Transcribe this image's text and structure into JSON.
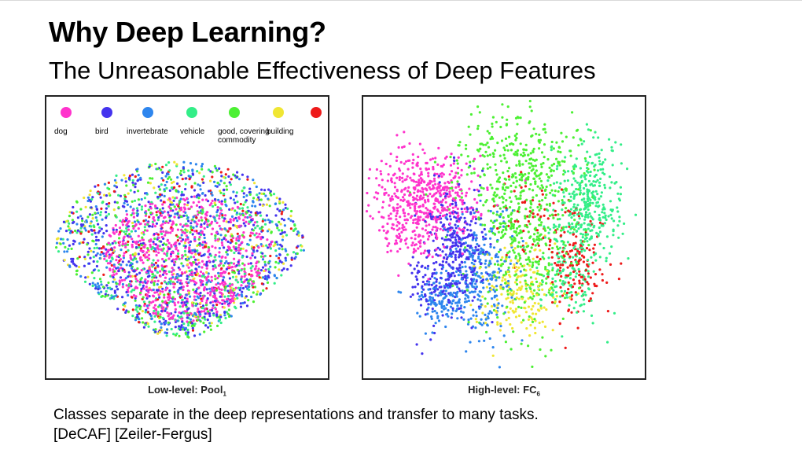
{
  "slide": {
    "title": "Why Deep Learning?",
    "subtitle": "The Unreasonable Effectiveness of Deep Features",
    "footer_line1": "Classes separate in the deep representations and transfer to many tasks.",
    "footer_line2": "[DeCAF] [Zeiler-Fergus]"
  },
  "legend": [
    {
      "label": "dog",
      "color": "#ff33cc"
    },
    {
      "label": "bird",
      "color": "#4433ee"
    },
    {
      "label": "invertebrate",
      "color": "#2e86ee"
    },
    {
      "label": "vehicle",
      "color": "#33ee88"
    },
    {
      "label": "good,  covering commodity",
      "color": "#4cf033"
    },
    {
      "label": "building",
      "color": "#f0e633"
    },
    {
      "label": "",
      "color": "#ee1a1a"
    }
  ],
  "legend_labels": [
    "dog",
    "bird",
    "invertebrate",
    "vehicle",
    "good,  covering\ncommodity",
    "building"
  ],
  "chart_data": [
    {
      "type": "scatter",
      "title": "",
      "xlabel": "Low-level: Pool",
      "xlabel_sub": "1",
      "ylabel": "",
      "series": [
        {
          "name": "dog",
          "color": "#ff33cc",
          "cluster": "mixed"
        },
        {
          "name": "bird",
          "color": "#4433ee",
          "cluster": "mixed"
        },
        {
          "name": "invertebrate",
          "color": "#2e86ee",
          "cluster": "mixed"
        },
        {
          "name": "vehicle",
          "color": "#33ee88",
          "cluster": "mixed"
        },
        {
          "name": "good,  covering commodity",
          "color": "#4cf033",
          "cluster": "mixed"
        },
        {
          "name": "building",
          "color": "#f0e633",
          "cluster": "mixed"
        },
        {
          "color": "#ee1a1a",
          "cluster": "mixed"
        }
      ],
      "grid": false,
      "legend_position": "top"
    },
    {
      "type": "scatter",
      "title": "",
      "xlabel": "High-level: FC",
      "xlabel_sub": "6",
      "ylabel": "",
      "series": [
        {
          "name": "dog",
          "color": "#ff33cc",
          "cluster": "left"
        },
        {
          "name": "bird",
          "color": "#4433ee",
          "cluster": "center-left"
        },
        {
          "name": "invertebrate",
          "color": "#2e86ee",
          "cluster": "center"
        },
        {
          "name": "vehicle",
          "color": "#33ee88",
          "cluster": "right"
        },
        {
          "name": "good,  covering commodity",
          "color": "#4cf033",
          "cluster": "top-center"
        },
        {
          "name": "building",
          "color": "#f0e633",
          "cluster": "center-bottom"
        },
        {
          "color": "#ee1a1a",
          "cluster": "center-right"
        }
      ],
      "grid": false,
      "legend_position": "none"
    }
  ]
}
